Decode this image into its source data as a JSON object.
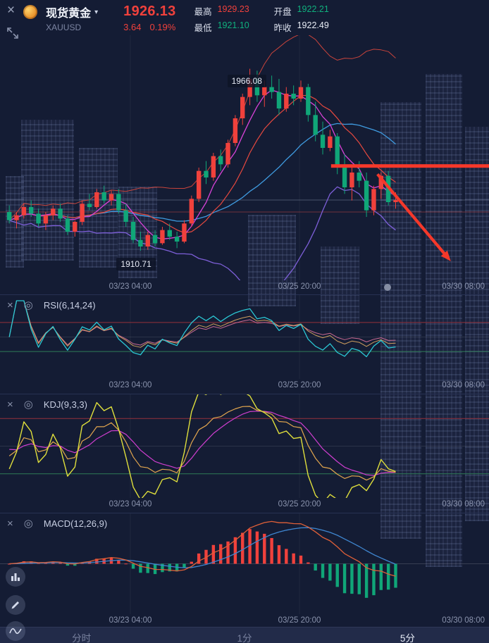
{
  "header": {
    "close_icon": "×",
    "title": "现货黄金",
    "caret": "▾",
    "symbol": "XAUUSD",
    "price": "1926.13",
    "change": "3.64",
    "change_pct": "0.19%",
    "stats": [
      {
        "label": "最高",
        "value": "1929.23",
        "tone": "up"
      },
      {
        "label": "最低",
        "value": "1921.10",
        "tone": "down"
      },
      {
        "label": "开盘",
        "value": "1922.21",
        "tone": "down"
      },
      {
        "label": "昨收",
        "value": "1922.49",
        "tone": "flat"
      }
    ]
  },
  "ui": {
    "panel_close": "×",
    "panel_settings": "◎"
  },
  "axis_labels": [
    "03/23 04:00",
    "03/25 20:00",
    "03/30 08:00"
  ],
  "indicator_panels": {
    "rsi": {
      "label": "RSI(6,14,24)"
    },
    "kdj": {
      "label": "KDJ(9,3,3)"
    },
    "macd": {
      "label": "MACD(12,26,9)"
    }
  },
  "annotations": {
    "high_label": "1966.08",
    "low_label": "1910.71"
  },
  "tabs": [
    {
      "label": "分时",
      "active": false
    },
    {
      "label": "1分",
      "active": false
    },
    {
      "label": "5分",
      "active": true
    }
  ],
  "colors": {
    "up": "#f0413c",
    "down": "#10a678",
    "ma5": "#d843d8",
    "ma10": "#e8493f",
    "ma20": "#3f9be0",
    "boll_upper": "#c9443c",
    "boll_lower": "#7d5fd8",
    "rsi1": "#2bc7d4",
    "rsi2": "#cf9f5e",
    "rsi3": "#c96a92",
    "kdj_k": "#e2a64e",
    "kdj_d": "#cf3ecf",
    "kdj_j": "#dede3c",
    "macd_dif": "#e06038",
    "macd_dea": "#3f86d0",
    "guide_red": "#93303b",
    "guide_green": "#2f7d57",
    "accent_red": "#f5382a"
  },
  "chart_data": {
    "type": "candlestick",
    "symbol": "XAUUSD",
    "timeframe": "5分",
    "ylim": [
      1903,
      1975
    ],
    "x_axis_labels": [
      "03/23 04:00",
      "03/25 20:00",
      "03/30 08:00"
    ],
    "indicators": {
      "rsi_periods": [
        6,
        14,
        24
      ],
      "kdj_params": [
        9,
        3,
        3
      ],
      "macd_params": [
        12,
        26,
        9
      ]
    },
    "rsi_guides": [
      70,
      30
    ],
    "kdj_guides": [
      80,
      20
    ],
    "overlay": {
      "current_price": 1926.13,
      "prev_close": 1922.49,
      "resistance_price": 1936.5,
      "resistance_x_start_f": 0.677,
      "trend_arrow": {
        "from": {
          "x_f": 0.772,
          "price": 1934.0
        },
        "to": {
          "x_f": 0.922,
          "price": 1907.5
        }
      },
      "marker_dot_xf": 0.792
    },
    "candles": [
      [
        1922.5,
        1924.5,
        1919.0,
        1920.0
      ],
      [
        1920.0,
        1922.5,
        1917.5,
        1921.5
      ],
      [
        1921.5,
        1925.0,
        1920.5,
        1924.0
      ],
      [
        1924.0,
        1926.0,
        1921.0,
        1922.0
      ],
      [
        1922.0,
        1923.5,
        1918.0,
        1919.0
      ],
      [
        1919.0,
        1922.5,
        1917.0,
        1921.5
      ],
      [
        1921.5,
        1924.5,
        1920.0,
        1923.5
      ],
      [
        1923.5,
        1925.0,
        1919.5,
        1920.5
      ],
      [
        1920.5,
        1921.5,
        1915.5,
        1916.5
      ],
      [
        1916.5,
        1920.0,
        1915.0,
        1919.5
      ],
      [
        1919.5,
        1926.0,
        1918.5,
        1925.0
      ],
      [
        1925.0,
        1928.0,
        1923.0,
        1924.0
      ],
      [
        1924.0,
        1929.5,
        1923.5,
        1928.5
      ],
      [
        1928.5,
        1930.5,
        1925.0,
        1926.0
      ],
      [
        1926.0,
        1929.0,
        1924.5,
        1928.0
      ],
      [
        1928.0,
        1929.5,
        1922.0,
        1923.0
      ],
      [
        1923.0,
        1925.0,
        1918.0,
        1919.5
      ],
      [
        1919.5,
        1921.0,
        1913.0,
        1914.0
      ],
      [
        1914.0,
        1916.5,
        1910.71,
        1912.0
      ],
      [
        1912.0,
        1916.5,
        1911.0,
        1915.5
      ],
      [
        1915.5,
        1917.0,
        1912.0,
        1913.0
      ],
      [
        1913.0,
        1918.0,
        1912.5,
        1917.0
      ],
      [
        1917.0,
        1919.0,
        1914.0,
        1915.0
      ],
      [
        1915.0,
        1916.5,
        1911.5,
        1913.5
      ],
      [
        1913.5,
        1920.0,
        1913.0,
        1919.0
      ],
      [
        1919.0,
        1927.5,
        1918.0,
        1926.5
      ],
      [
        1926.5,
        1936.0,
        1925.5,
        1935.0
      ],
      [
        1935.0,
        1938.0,
        1931.0,
        1933.0
      ],
      [
        1933.0,
        1940.5,
        1932.0,
        1939.5
      ],
      [
        1939.5,
        1941.5,
        1935.0,
        1937.0
      ],
      [
        1937.0,
        1944.5,
        1936.0,
        1943.5
      ],
      [
        1943.5,
        1952.0,
        1942.5,
        1951.0
      ],
      [
        1951.0,
        1958.5,
        1949.0,
        1957.5
      ],
      [
        1957.5,
        1966.08,
        1955.0,
        1963.0
      ],
      [
        1963.0,
        1965.5,
        1956.0,
        1958.0
      ],
      [
        1958.0,
        1962.5,
        1954.5,
        1960.5
      ],
      [
        1960.5,
        1964.0,
        1957.0,
        1959.0
      ],
      [
        1959.0,
        1963.0,
        1952.0,
        1954.0
      ],
      [
        1954.0,
        1960.5,
        1953.0,
        1958.5
      ],
      [
        1958.5,
        1961.0,
        1955.0,
        1957.0
      ],
      [
        1957.0,
        1962.5,
        1956.0,
        1960.5
      ],
      [
        1960.5,
        1961.5,
        1950.0,
        1952.0
      ],
      [
        1952.0,
        1956.0,
        1944.0,
        1946.0
      ],
      [
        1946.0,
        1950.0,
        1940.0,
        1942.0
      ],
      [
        1942.0,
        1947.5,
        1941.0,
        1945.5
      ],
      [
        1945.5,
        1946.5,
        1934.0,
        1936.0
      ],
      [
        1936.0,
        1940.0,
        1928.0,
        1930.0
      ],
      [
        1930.0,
        1936.5,
        1926.0,
        1934.5
      ],
      [
        1934.5,
        1938.0,
        1930.0,
        1932.0
      ],
      [
        1932.0,
        1934.5,
        1921.0,
        1923.0
      ],
      [
        1923.0,
        1930.5,
        1921.5,
        1929.5
      ],
      [
        1929.5,
        1934.5,
        1926.5,
        1933.5
      ],
      [
        1933.5,
        1935.0,
        1924.5,
        1925.5
      ],
      [
        1925.5,
        1928.5,
        1923.5,
        1926.13
      ]
    ]
  }
}
